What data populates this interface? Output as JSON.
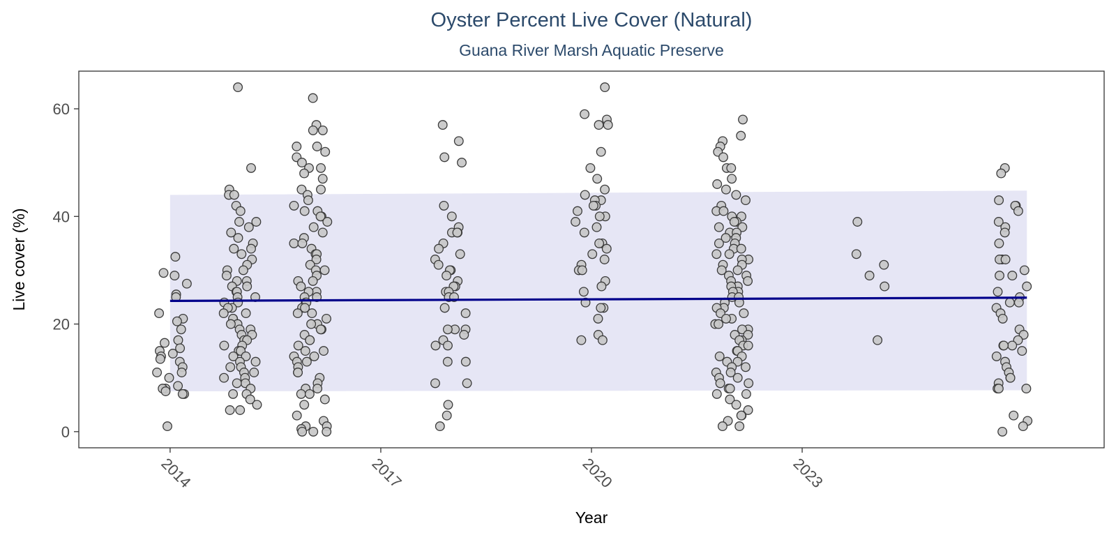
{
  "chart_data": {
    "type": "scatter",
    "title": "Oyster Percent Live Cover (Natural)",
    "subtitle": "Guana River Marsh Aquatic Preserve",
    "xlabel": "Year",
    "ylabel": "Live cover (%)",
    "xlim": [
      2012.7,
      2027.3
    ],
    "ylim": [
      -3,
      67
    ],
    "x_ticks": [
      2014,
      2017,
      2020,
      2023
    ],
    "y_ticks": [
      0,
      20,
      40,
      60
    ],
    "grid": false,
    "legend": "none",
    "point_fill": "#c8c8c8",
    "point_stroke": "#3a3a3a",
    "trend_color": "#00008b",
    "ribbon_color": "#e6e6f5",
    "trend": {
      "x": [
        2014.0,
        2026.2
      ],
      "y": [
        24.3,
        24.9
      ]
    },
    "ribbon": {
      "x": [
        2014.0,
        2026.2
      ],
      "lower": [
        7.5,
        7.7
      ],
      "upper": [
        44.0,
        44.8
      ]
    },
    "groups": [
      {
        "x": 2014.0,
        "values": [
          32.5,
          29.5,
          29,
          27.5,
          25.5,
          25,
          22,
          21,
          20.5,
          19,
          17,
          16.5,
          15.5,
          15,
          14.5,
          14,
          13.5,
          13,
          12,
          11,
          11,
          10,
          8.5,
          8,
          8,
          7.5,
          7,
          7,
          1
        ]
      },
      {
        "x": 2015.0,
        "values": [
          64,
          49,
          45,
          44,
          44,
          42,
          41,
          39,
          39,
          38,
          37,
          36,
          35,
          34,
          34,
          33,
          32,
          31,
          30,
          30,
          29,
          28,
          28,
          27,
          27,
          26,
          26,
          25,
          25,
          24,
          24,
          23,
          23,
          22,
          22,
          21,
          21,
          20,
          20,
          19,
          19,
          18,
          18,
          17,
          17,
          16,
          16,
          15,
          15,
          14,
          14,
          13,
          13,
          12,
          12,
          11,
          11,
          10,
          10,
          9,
          9,
          8,
          7,
          7,
          6,
          5,
          4,
          4
        ]
      },
      {
        "x": 2016.0,
        "values": [
          62,
          57,
          56,
          56,
          53,
          53,
          52,
          51,
          50,
          49,
          49,
          48,
          47,
          45,
          45,
          44,
          43,
          42,
          41,
          41,
          40,
          40,
          39,
          38,
          37,
          36,
          35,
          35,
          34,
          33,
          33,
          32,
          31,
          30,
          30,
          29,
          28,
          28,
          27,
          26,
          26,
          25,
          25,
          24,
          24,
          23,
          23,
          22,
          22,
          21,
          20,
          20,
          19,
          19,
          18,
          17,
          17,
          16,
          15,
          15,
          14,
          14,
          13,
          13,
          12,
          11,
          11,
          10,
          9,
          8,
          8,
          7,
          7,
          6,
          5,
          3,
          2,
          1,
          1,
          0.5,
          0,
          0,
          0
        ]
      },
      {
        "x": 2018.0,
        "values": [
          57,
          54,
          51,
          50,
          42,
          40,
          38,
          37,
          37,
          37,
          35,
          34,
          33,
          32,
          31,
          30,
          30,
          29,
          28,
          27,
          27,
          26,
          26,
          25,
          25,
          23,
          22,
          19,
          19,
          19,
          18,
          17,
          16,
          16,
          13,
          13,
          9,
          9,
          5,
          3,
          1
        ]
      },
      {
        "x": 2020.0,
        "values": [
          64,
          59,
          58,
          57,
          57,
          52,
          49,
          47,
          45,
          44,
          43,
          43,
          42,
          42,
          41,
          40,
          40,
          39,
          38,
          37,
          35,
          35,
          34,
          33,
          32,
          31,
          30,
          30,
          28,
          27,
          26,
          24,
          23,
          23,
          21,
          18,
          17,
          17
        ]
      },
      {
        "x": 2022.0,
        "values": [
          58,
          55,
          54,
          53,
          52,
          51,
          49,
          49,
          47,
          46,
          45,
          44,
          43,
          42,
          41,
          41,
          40,
          40,
          39,
          39,
          38,
          38,
          37,
          37,
          36,
          36,
          35,
          35,
          34,
          34,
          33,
          33,
          32,
          32,
          31,
          31,
          30,
          30,
          29,
          29,
          28,
          28,
          27,
          27,
          26,
          26,
          25,
          25,
          24,
          24,
          23,
          23,
          22,
          22,
          21,
          21,
          20,
          20,
          19,
          19,
          18,
          18,
          17,
          17,
          16,
          16,
          15,
          15,
          14,
          14,
          13,
          13,
          12,
          12,
          11,
          11,
          10,
          10,
          9,
          9,
          8,
          8,
          7,
          7,
          6,
          5,
          4,
          3,
          3,
          2,
          1,
          1
        ]
      },
      {
        "x": 2024.0,
        "values": [
          39,
          33,
          31,
          29,
          27,
          17
        ]
      },
      {
        "x": 2026.0,
        "values": [
          49,
          48,
          43,
          42,
          42,
          41,
          39,
          38,
          37,
          35,
          32,
          32,
          32,
          30,
          29,
          29,
          27,
          26,
          25,
          24,
          24,
          23,
          22,
          21,
          19,
          18,
          17,
          16,
          16,
          16,
          15,
          14,
          13,
          12,
          11,
          10,
          10,
          9,
          8,
          8,
          8,
          3,
          2,
          1,
          0
        ]
      }
    ]
  }
}
